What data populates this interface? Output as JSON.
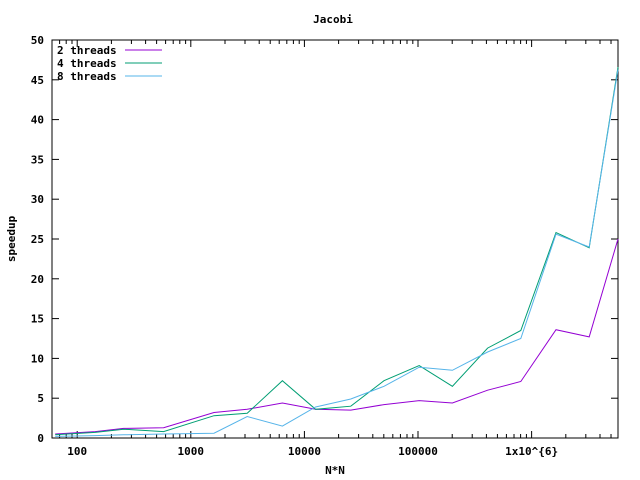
{
  "chart_data": {
    "type": "line",
    "title": "Jacobi",
    "xlabel": "N*N",
    "ylabel": "speedup",
    "x_scale": "log",
    "xlim": [
      60,
      5760000
    ],
    "ylim": [
      0,
      50
    ],
    "x_ticks": [
      {
        "value": 100,
        "label": "100"
      },
      {
        "value": 1000,
        "label": "1000"
      },
      {
        "value": 10000,
        "label": "10000"
      },
      {
        "value": 100000,
        "label": "100000"
      },
      {
        "value": 1000000,
        "label": "1x10^{6}"
      }
    ],
    "y_ticks": [
      0,
      5,
      10,
      15,
      20,
      25,
      30,
      35,
      40,
      45,
      50
    ],
    "grid": false,
    "legend_position": "top-left",
    "x": [
      64,
      144,
      256,
      576,
      1600,
      3136,
      6400,
      12544,
      25600,
      50176,
      102400,
      200704,
      409600,
      802816,
      1638400,
      3211264,
      5760000
    ],
    "series": [
      {
        "name": "2 threads",
        "color": "#9400d3",
        "values": [
          0.5,
          0.8,
          1.2,
          1.3,
          3.2,
          3.6,
          4.4,
          3.6,
          3.5,
          4.2,
          4.7,
          4.4,
          6.0,
          7.1,
          13.6,
          12.7,
          25.0
        ]
      },
      {
        "name": "4 threads",
        "color": "#009e73",
        "values": [
          0.4,
          0.7,
          1.1,
          0.8,
          2.8,
          3.1,
          7.2,
          3.6,
          4.0,
          7.2,
          9.1,
          6.5,
          11.3,
          13.5,
          25.8,
          23.9,
          46.6
        ]
      },
      {
        "name": "8 threads",
        "color": "#56b4e9",
        "values": [
          0.2,
          0.3,
          0.4,
          0.5,
          0.6,
          2.7,
          1.5,
          3.9,
          4.9,
          6.5,
          8.9,
          8.5,
          10.8,
          12.5,
          25.6,
          24.0,
          46.3
        ]
      }
    ]
  }
}
